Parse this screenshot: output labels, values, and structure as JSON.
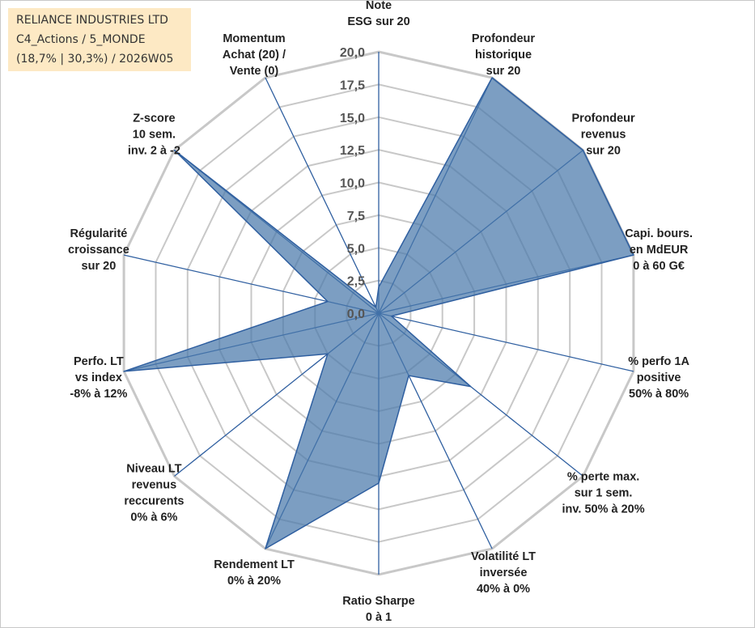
{
  "info_box": {
    "line1": "RELIANCE INDUSTRIES LTD",
    "line2": "C4_Actions / 5_MONDE",
    "line3": "(18,7% | 30,3%) / 2026W05"
  },
  "chart_data": {
    "type": "radar",
    "r_min": 0,
    "r_max": 20,
    "r_ticks": [
      "0,0",
      "2,5",
      "5,0",
      "7,5",
      "10,0",
      "12,5",
      "15,0",
      "17,5",
      "20,0"
    ],
    "grid": true,
    "series_fill": "#4a78aa",
    "series_stroke": "#2f5fa0",
    "grid_color": "#c8c8c8",
    "spoke_color": "#2f5fa0",
    "axes": [
      {
        "label": [
          "Note",
          "ESG sur 20"
        ],
        "value": 2.0
      },
      {
        "label": [
          "Profondeur",
          "historique",
          "sur 20"
        ],
        "value": 20.0
      },
      {
        "label": [
          "Profondeur",
          "revenus",
          "sur 20"
        ],
        "value": 20.0
      },
      {
        "label": [
          "Capi. bours.",
          "en MdEUR",
          "0 à 60 G€"
        ],
        "value": 20.0
      },
      {
        "label": [
          "% perfo 1A",
          "positive",
          "50% à 80%"
        ],
        "value": 1.0
      },
      {
        "label": [
          "% perte max.",
          "sur 1 sem.",
          "inv. 50% à 20%"
        ],
        "value": 9.0
      },
      {
        "label": [
          "Volatilité LT",
          "inversée",
          "40% à 0%"
        ],
        "value": 5.3
      },
      {
        "label": [
          "Ratio Sharpe",
          "0 à 1"
        ],
        "value": 13.0
      },
      {
        "label": [
          "Rendement LT",
          "0% à 20%"
        ],
        "value": 20.0
      },
      {
        "label": [
          "Niveau LT",
          "revenus",
          "reccurents",
          "0% à 6%"
        ],
        "value": 5.0
      },
      {
        "label": [
          "Perfo. LT",
          "vs index",
          "-8% à 12%"
        ],
        "value": 20.0
      },
      {
        "label": [
          "Régularité",
          "croissance",
          "sur 20"
        ],
        "value": 4.0
      },
      {
        "label": [
          "Z-score",
          "10 sem.",
          "inv. 2 à -2"
        ],
        "value": 20.0
      },
      {
        "label": [
          "Momentum",
          "Achat (20) /",
          "Vente (0)"
        ],
        "value": 0.5
      }
    ]
  }
}
